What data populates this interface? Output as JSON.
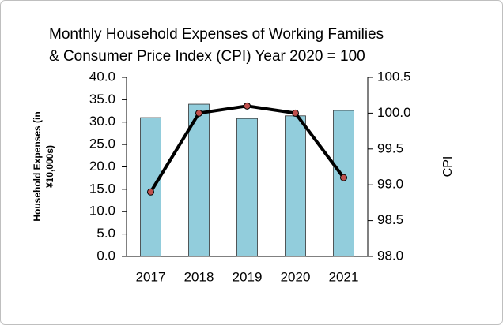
{
  "chart_data": {
    "type": "bar-line",
    "title": [
      "Monthly Household Expenses of Working Families",
      "& Consumer Price Index (CPI)   Year 2020 = 100"
    ],
    "y_label": [
      "Household Expenses (in",
      "¥10,000s)"
    ],
    "y2_label": "CPI",
    "categories": [
      "2017",
      "2018",
      "2019",
      "2020",
      "2021"
    ],
    "series": [
      {
        "name": "Household Expenses",
        "type": "bar",
        "color": "#92cddc",
        "values": [
          31.0,
          34.0,
          30.8,
          31.4,
          32.6
        ]
      },
      {
        "name": "CPI",
        "type": "line",
        "axis": "y2",
        "color": "#000000",
        "marker_color": "#c0504d",
        "values": [
          98.9,
          100.0,
          100.1,
          100.0,
          99.1
        ]
      }
    ],
    "ylim": [
      0,
      40
    ],
    "yticks": [
      {
        "value": 0,
        "label": "0.0"
      },
      {
        "value": 5,
        "label": "5.0"
      },
      {
        "value": 10,
        "label": "10.0"
      },
      {
        "value": 15,
        "label": "15.0"
      },
      {
        "value": 20,
        "label": "20.0"
      },
      {
        "value": 25,
        "label": "25.0"
      },
      {
        "value": 30,
        "label": "30.0"
      },
      {
        "value": 35,
        "label": "35.0"
      },
      {
        "value": 40,
        "label": "40.0"
      }
    ],
    "y2lim": [
      98.0,
      100.5
    ],
    "y2ticks": [
      {
        "value": 98.0,
        "label": "98.0"
      },
      {
        "value": 98.5,
        "label": "98.5"
      },
      {
        "value": 99.0,
        "label": "99.0"
      },
      {
        "value": 99.5,
        "label": "99.5"
      },
      {
        "value": 100.0,
        "label": "100.0"
      },
      {
        "value": 100.5,
        "label": "100.5"
      }
    ]
  }
}
